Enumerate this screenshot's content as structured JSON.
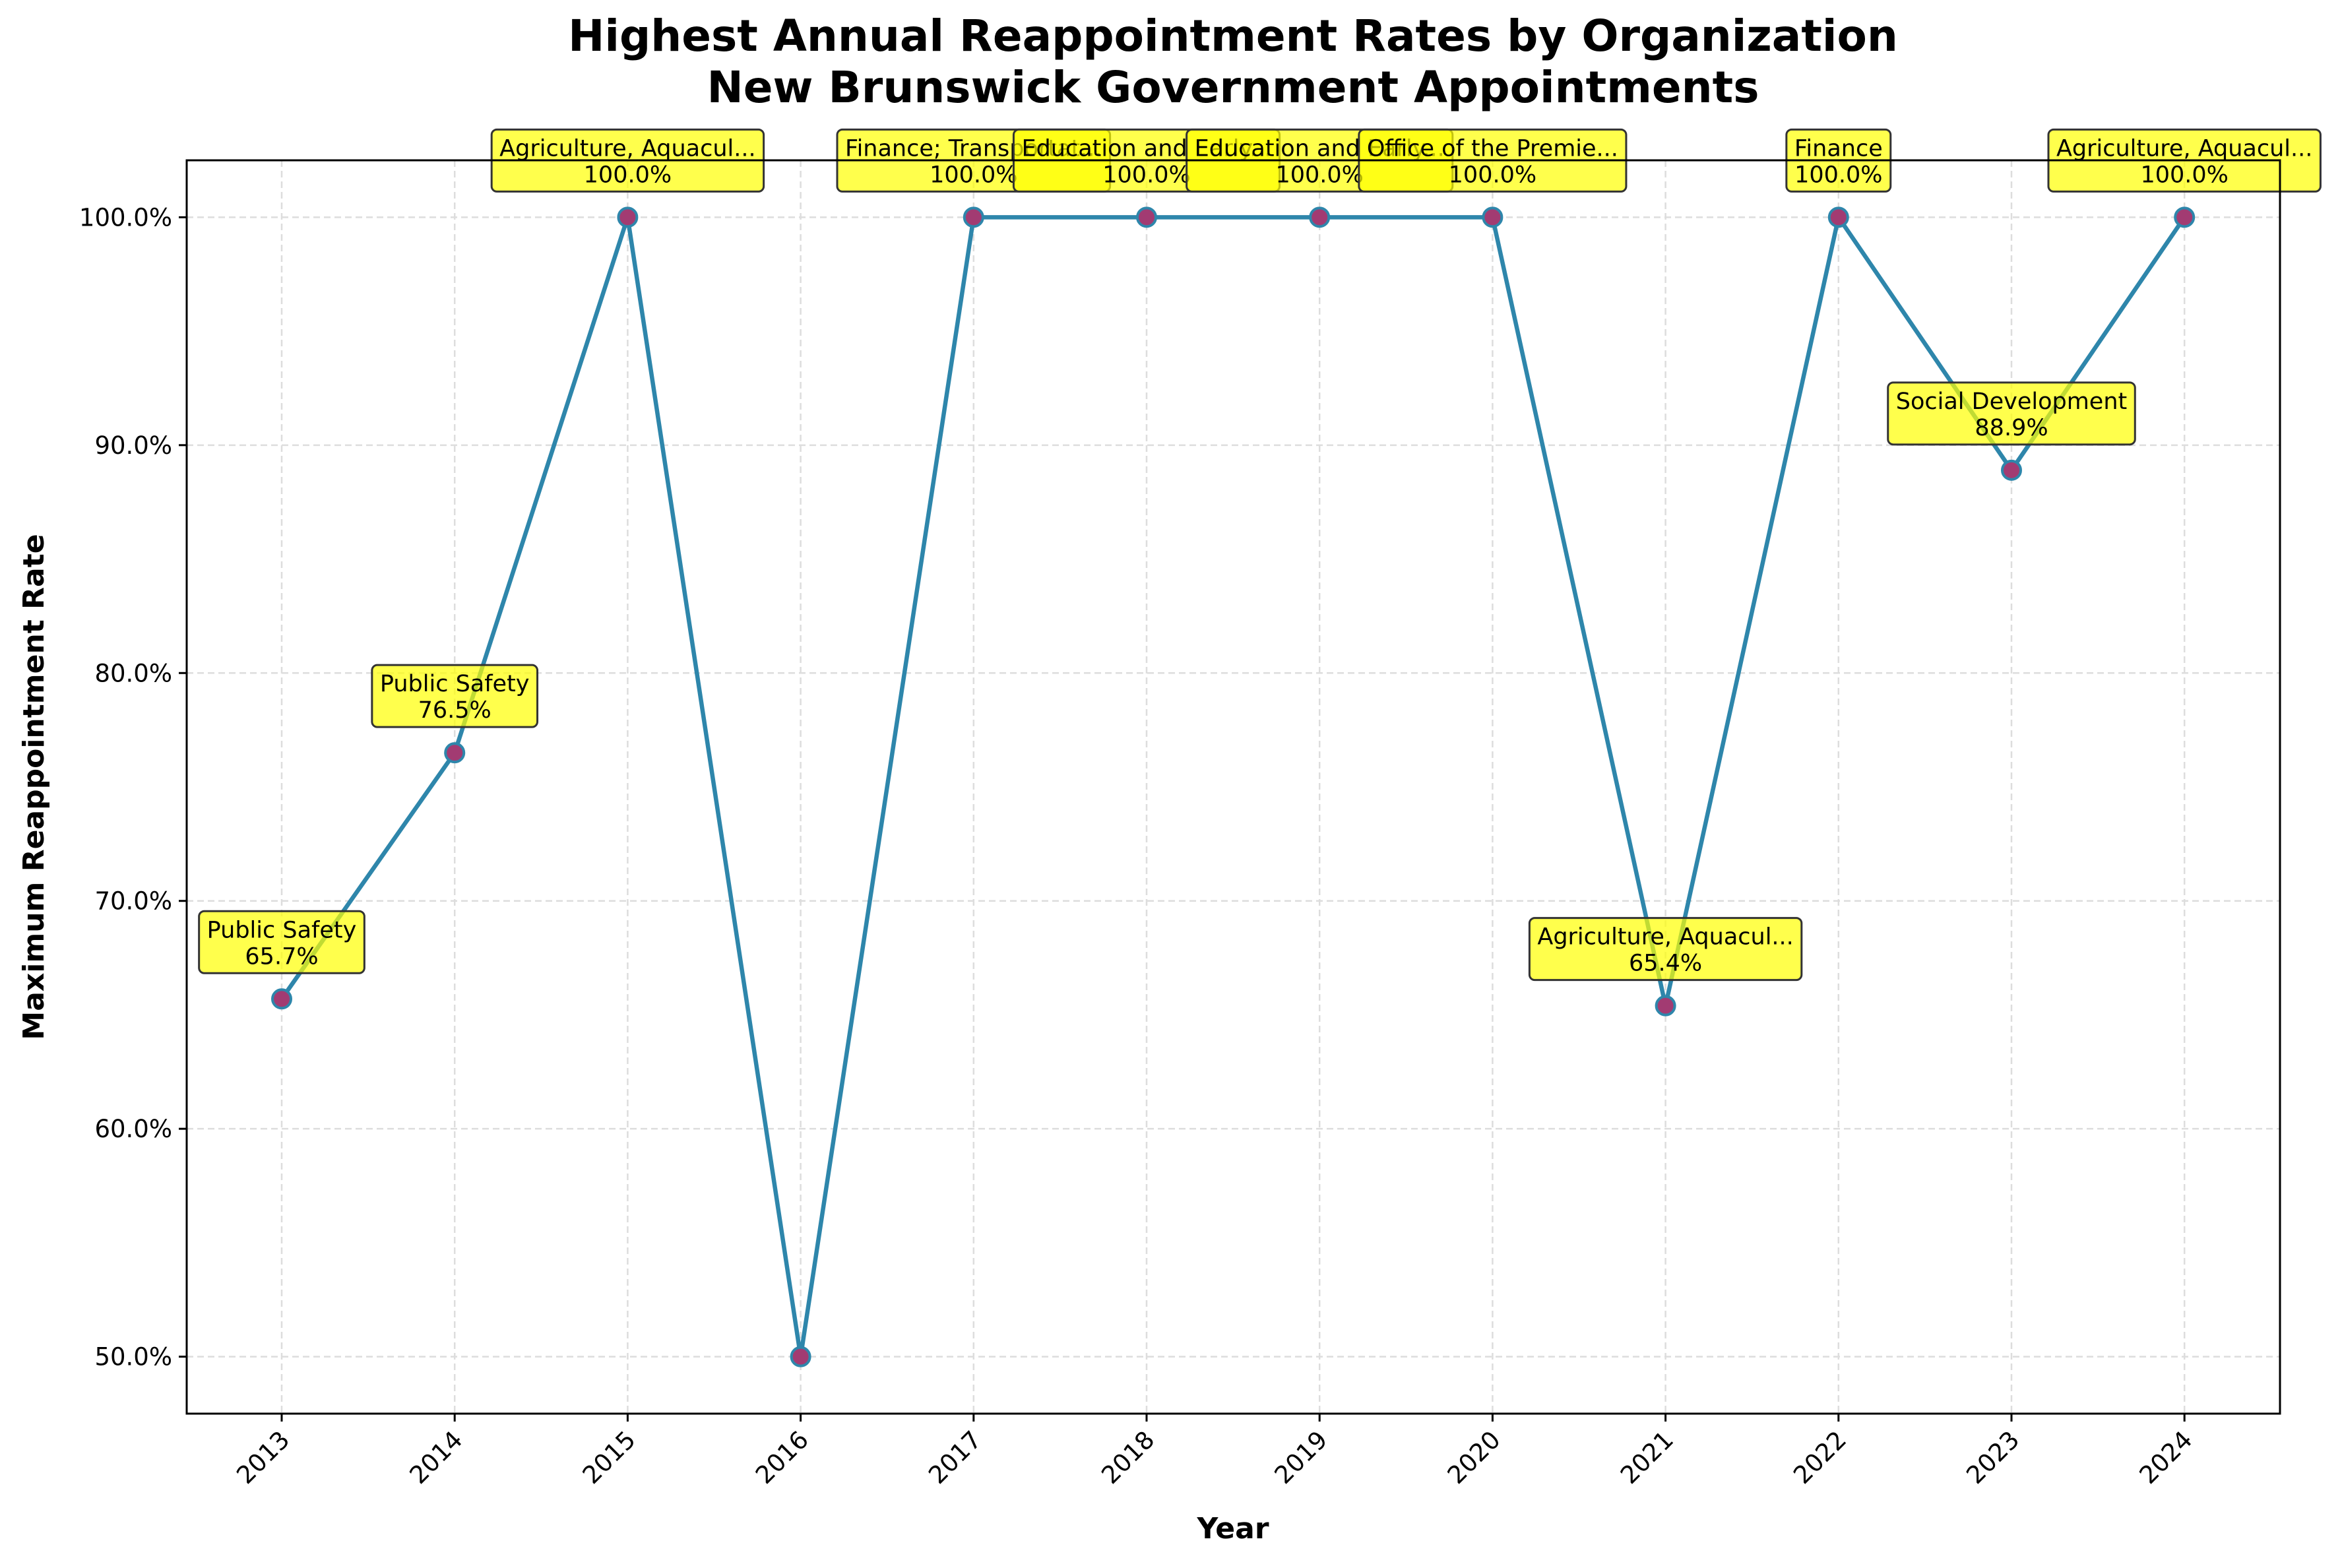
{
  "chart_data": {
    "type": "line",
    "title": "Highest Annual Reappointment Rates by Organization",
    "subtitle": "New Brunswick Government Appointments",
    "xlabel": "Year",
    "ylabel": "Maximum Reappointment Rate",
    "x": [
      "2013",
      "2014",
      "2015",
      "2016",
      "2017",
      "2018",
      "2019",
      "2020",
      "2021",
      "2022",
      "2023",
      "2024"
    ],
    "values": [
      65.7,
      76.5,
      100.0,
      50.0,
      100.0,
      100.0,
      100.0,
      100.0,
      65.4,
      100.0,
      88.9,
      100.0
    ],
    "y_ticks": [
      "50.0%",
      "60.0%",
      "70.0%",
      "80.0%",
      "90.0%",
      "100.0%"
    ],
    "ylim": [
      47.5,
      102.5
    ],
    "grid": true,
    "annotations": [
      {
        "org": "Public Safety",
        "value": "65.7%"
      },
      {
        "org": "Public Safety",
        "value": "76.5%"
      },
      {
        "org": "Agriculture, Aquacul...",
        "value": "100.0%"
      },
      null,
      {
        "org": "Finance; Transportat...",
        "value": "100.0%"
      },
      {
        "org": "Education and Early...",
        "value": "100.0%"
      },
      {
        "org": "Education and Early...",
        "value": "100.0%"
      },
      {
        "org": "Office of the Premie...",
        "value": "100.0%"
      },
      {
        "org": "Agriculture, Aquacul...",
        "value": "65.4%"
      },
      {
        "org": "Finance",
        "value": "100.0%"
      },
      {
        "org": "Social Development",
        "value": "88.9%"
      },
      {
        "org": "Agriculture, Aquacul...",
        "value": "100.0%"
      }
    ],
    "colors": {
      "line": "#2e86ab",
      "marker_fill": "#a23b72",
      "marker_edge": "#2e86ab",
      "annotation_fill": "#ffff00",
      "annotation_edge": "#333333",
      "grid": "#dddddd"
    }
  }
}
